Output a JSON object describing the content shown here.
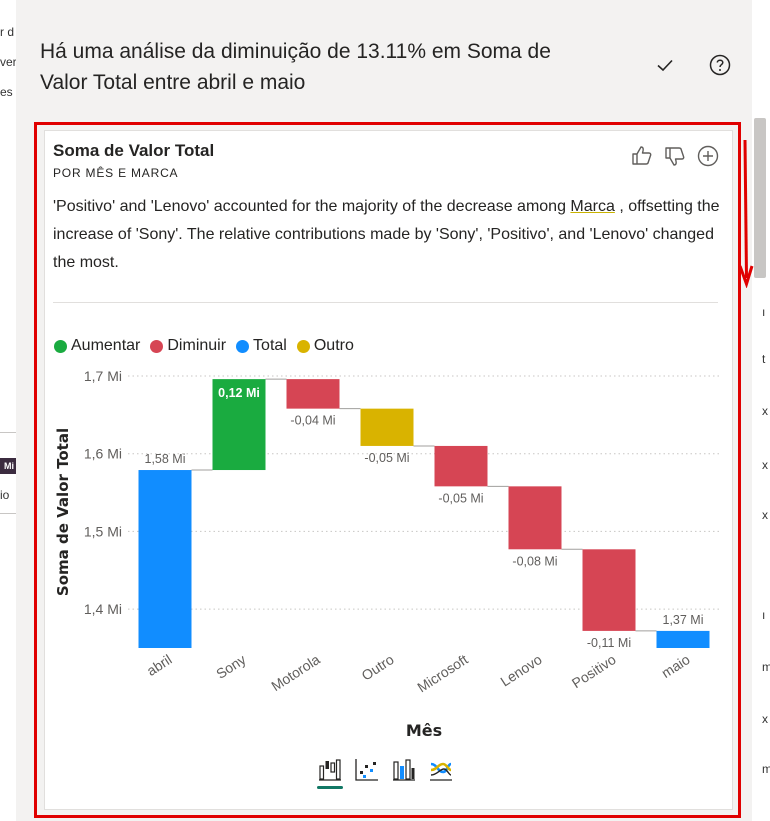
{
  "panel": {
    "title": "Há uma análise da diminuição de 13.11% em Soma de Valor Total entre abril e maio"
  },
  "card": {
    "title": "Soma de Valor Total",
    "subtitle": "POR MÊS E MARCA",
    "text_before": "'Positivo' and 'Lenovo' accounted for the majority of the decrease among ",
    "text_link": "Marca",
    "text_after": " , offsetting the increase of 'Sony'. The relative contributions made by 'Sony', 'Positivo', and 'Lenovo' changed the most."
  },
  "background": {
    "left_fragments": [
      "r d",
      "ver",
      "es n"
    ],
    "left_badge": "Mi",
    "left_card_label": "io",
    "right_fragments": [
      "ı",
      "t",
      "x",
      "x",
      "x",
      "ı",
      "m",
      "x",
      "m"
    ]
  },
  "colors": {
    "increase": "#1aab40",
    "decrease": "#d64554",
    "total": "#118dff",
    "other": "#d9b300",
    "accent": "#117865",
    "highlight": "#e00000"
  },
  "icons": {
    "confirm": "checkmark-icon",
    "help": "help-icon",
    "like": "thumbs-up-icon",
    "dislike": "thumbs-down-icon",
    "add": "add-circle-icon",
    "viz_tabs": [
      "waterfall-chart-icon",
      "scatter-chart-icon",
      "column-chart-icon",
      "ribbon-chart-icon"
    ]
  },
  "chart_data": {
    "type": "waterfall",
    "xlabel": "Mês",
    "ylabel": "Soma de Valor Total",
    "ylim": [
      1.35,
      1.7
    ],
    "yticks": [
      {
        "value": 1.4,
        "label": "1,4 Mi"
      },
      {
        "value": 1.5,
        "label": "1,5 Mi"
      },
      {
        "value": 1.6,
        "label": "1,6 Mi"
      },
      {
        "value": 1.7,
        "label": "1,7 Mi"
      }
    ],
    "grid": true,
    "legend": [
      {
        "name": "Aumentar",
        "kind": "increase"
      },
      {
        "name": "Diminuir",
        "kind": "decrease"
      },
      {
        "name": "Total",
        "kind": "total"
      },
      {
        "name": "Outro",
        "kind": "other"
      }
    ],
    "bars": [
      {
        "category": "abril",
        "kind": "total",
        "start": 1.35,
        "end": 1.579,
        "label": "1,58 Mi"
      },
      {
        "category": "Sony",
        "kind": "increase",
        "start": 1.579,
        "end": 1.696,
        "label": "0,12 Mi"
      },
      {
        "category": "Motorola",
        "kind": "decrease",
        "start": 1.696,
        "end": 1.658,
        "label": "-0,04 Mi"
      },
      {
        "category": "Outro",
        "kind": "other",
        "start": 1.658,
        "end": 1.61,
        "label": "-0,05 Mi"
      },
      {
        "category": "Microsoft",
        "kind": "decrease",
        "start": 1.61,
        "end": 1.558,
        "label": "-0,05 Mi"
      },
      {
        "category": "Lenovo",
        "kind": "decrease",
        "start": 1.558,
        "end": 1.477,
        "label": "-0,08 Mi"
      },
      {
        "category": "Positivo",
        "kind": "decrease",
        "start": 1.477,
        "end": 1.372,
        "label": "-0,11 Mi"
      },
      {
        "category": "maio",
        "kind": "total",
        "start": 1.35,
        "end": 1.372,
        "label": "1,37 Mi"
      }
    ]
  }
}
